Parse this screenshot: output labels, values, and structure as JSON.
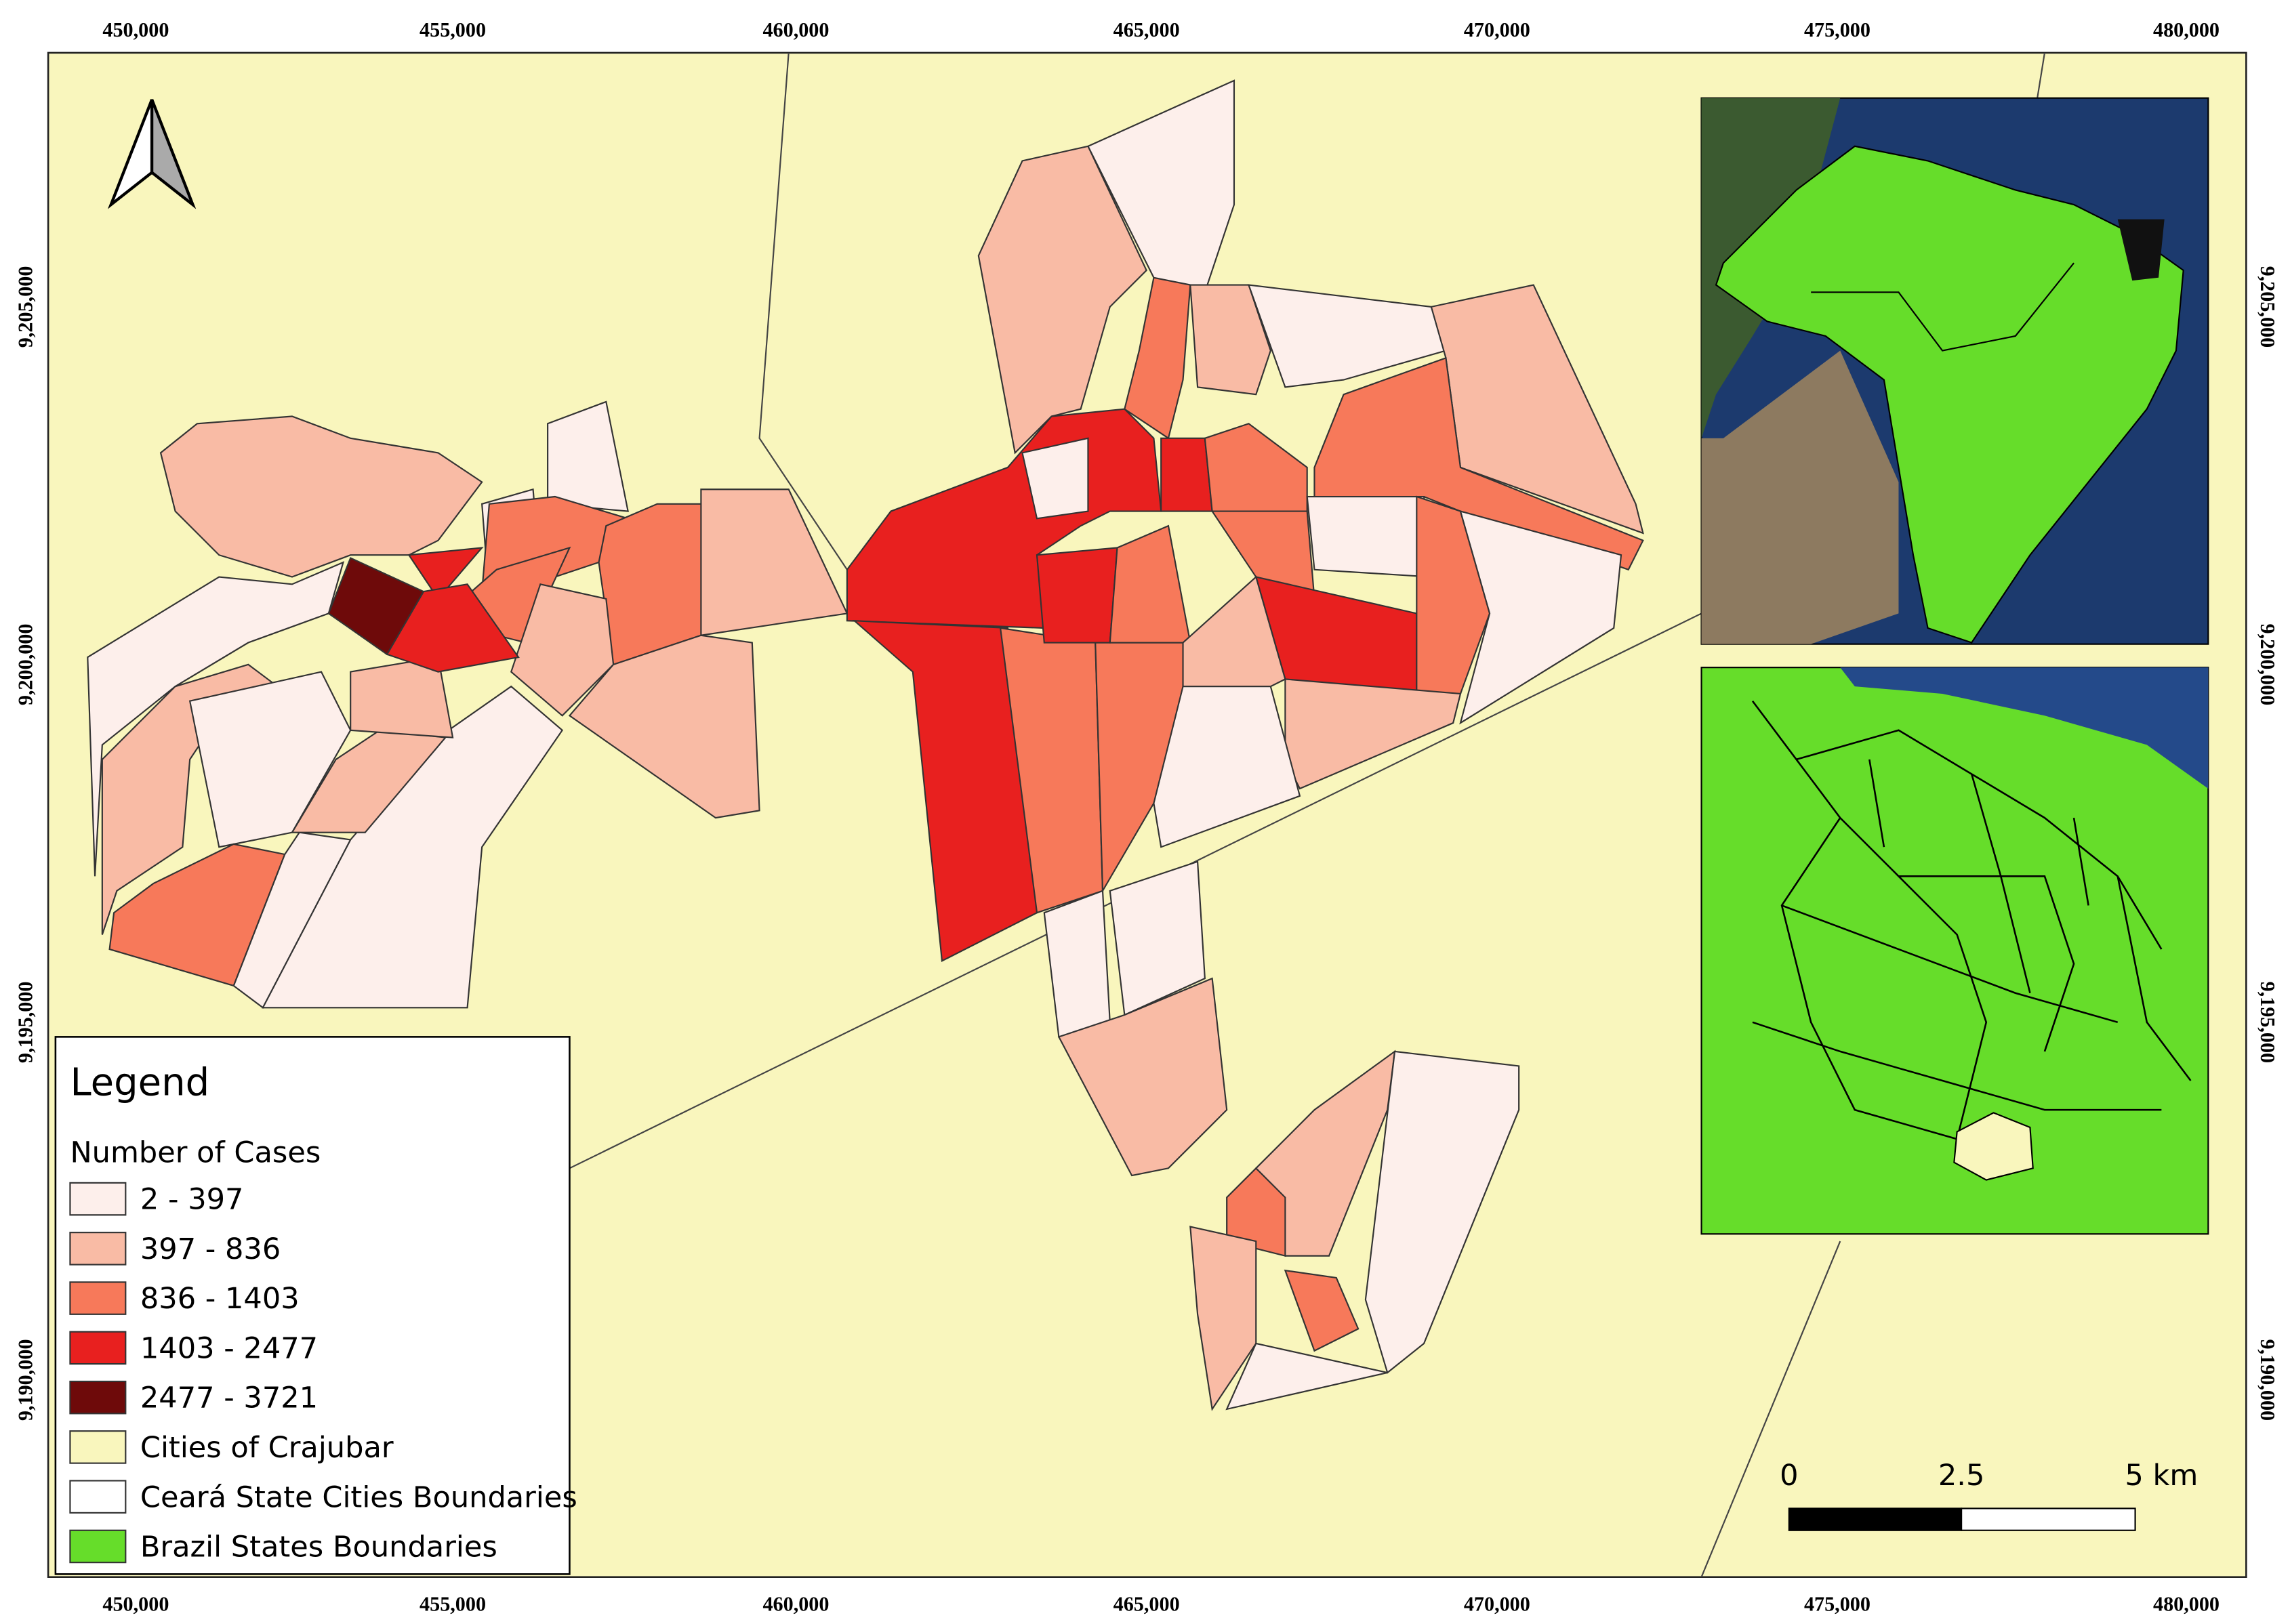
{
  "top_axis": {
    "labels": [
      "450,000",
      "455,000",
      "460,000",
      "465,000",
      "470,000",
      "475,000",
      "480,000"
    ]
  },
  "bottom_axis": {
    "labels": [
      "450,000",
      "455,000",
      "460,000",
      "465,000",
      "470,000",
      "475,000",
      "480,000"
    ]
  },
  "left_axis": {
    "labels": [
      "9,205,000",
      "9,200,000",
      "9,195,000",
      "9,190,000"
    ]
  },
  "right_axis": {
    "labels": [
      "9,205,000",
      "9,200,000",
      "9,195,000",
      "9,190,000"
    ]
  },
  "legend": {
    "title": "Legend",
    "subtitle": "Number of Cases",
    "items": [
      {
        "label": "2 - 397",
        "color": "#fdefeb"
      },
      {
        "label": "397 - 836",
        "color": "#f9bba5"
      },
      {
        "label": "836 - 1403",
        "color": "#f7795a"
      },
      {
        "label": "1403 - 2477",
        "color": "#e8201f"
      },
      {
        "label": "2477 - 3721",
        "color": "#6e0a0a"
      },
      {
        "label": "Cities of Crajubar",
        "color": "#f9f6bd"
      },
      {
        "label": "Ceará State Cities Boundaries",
        "color": "#ffffff"
      },
      {
        "label": "Brazil States Boundaries",
        "color": "#66dd2a"
      }
    ]
  },
  "scale_bar": {
    "labels": [
      "0",
      "2.5",
      "5 km"
    ]
  }
}
